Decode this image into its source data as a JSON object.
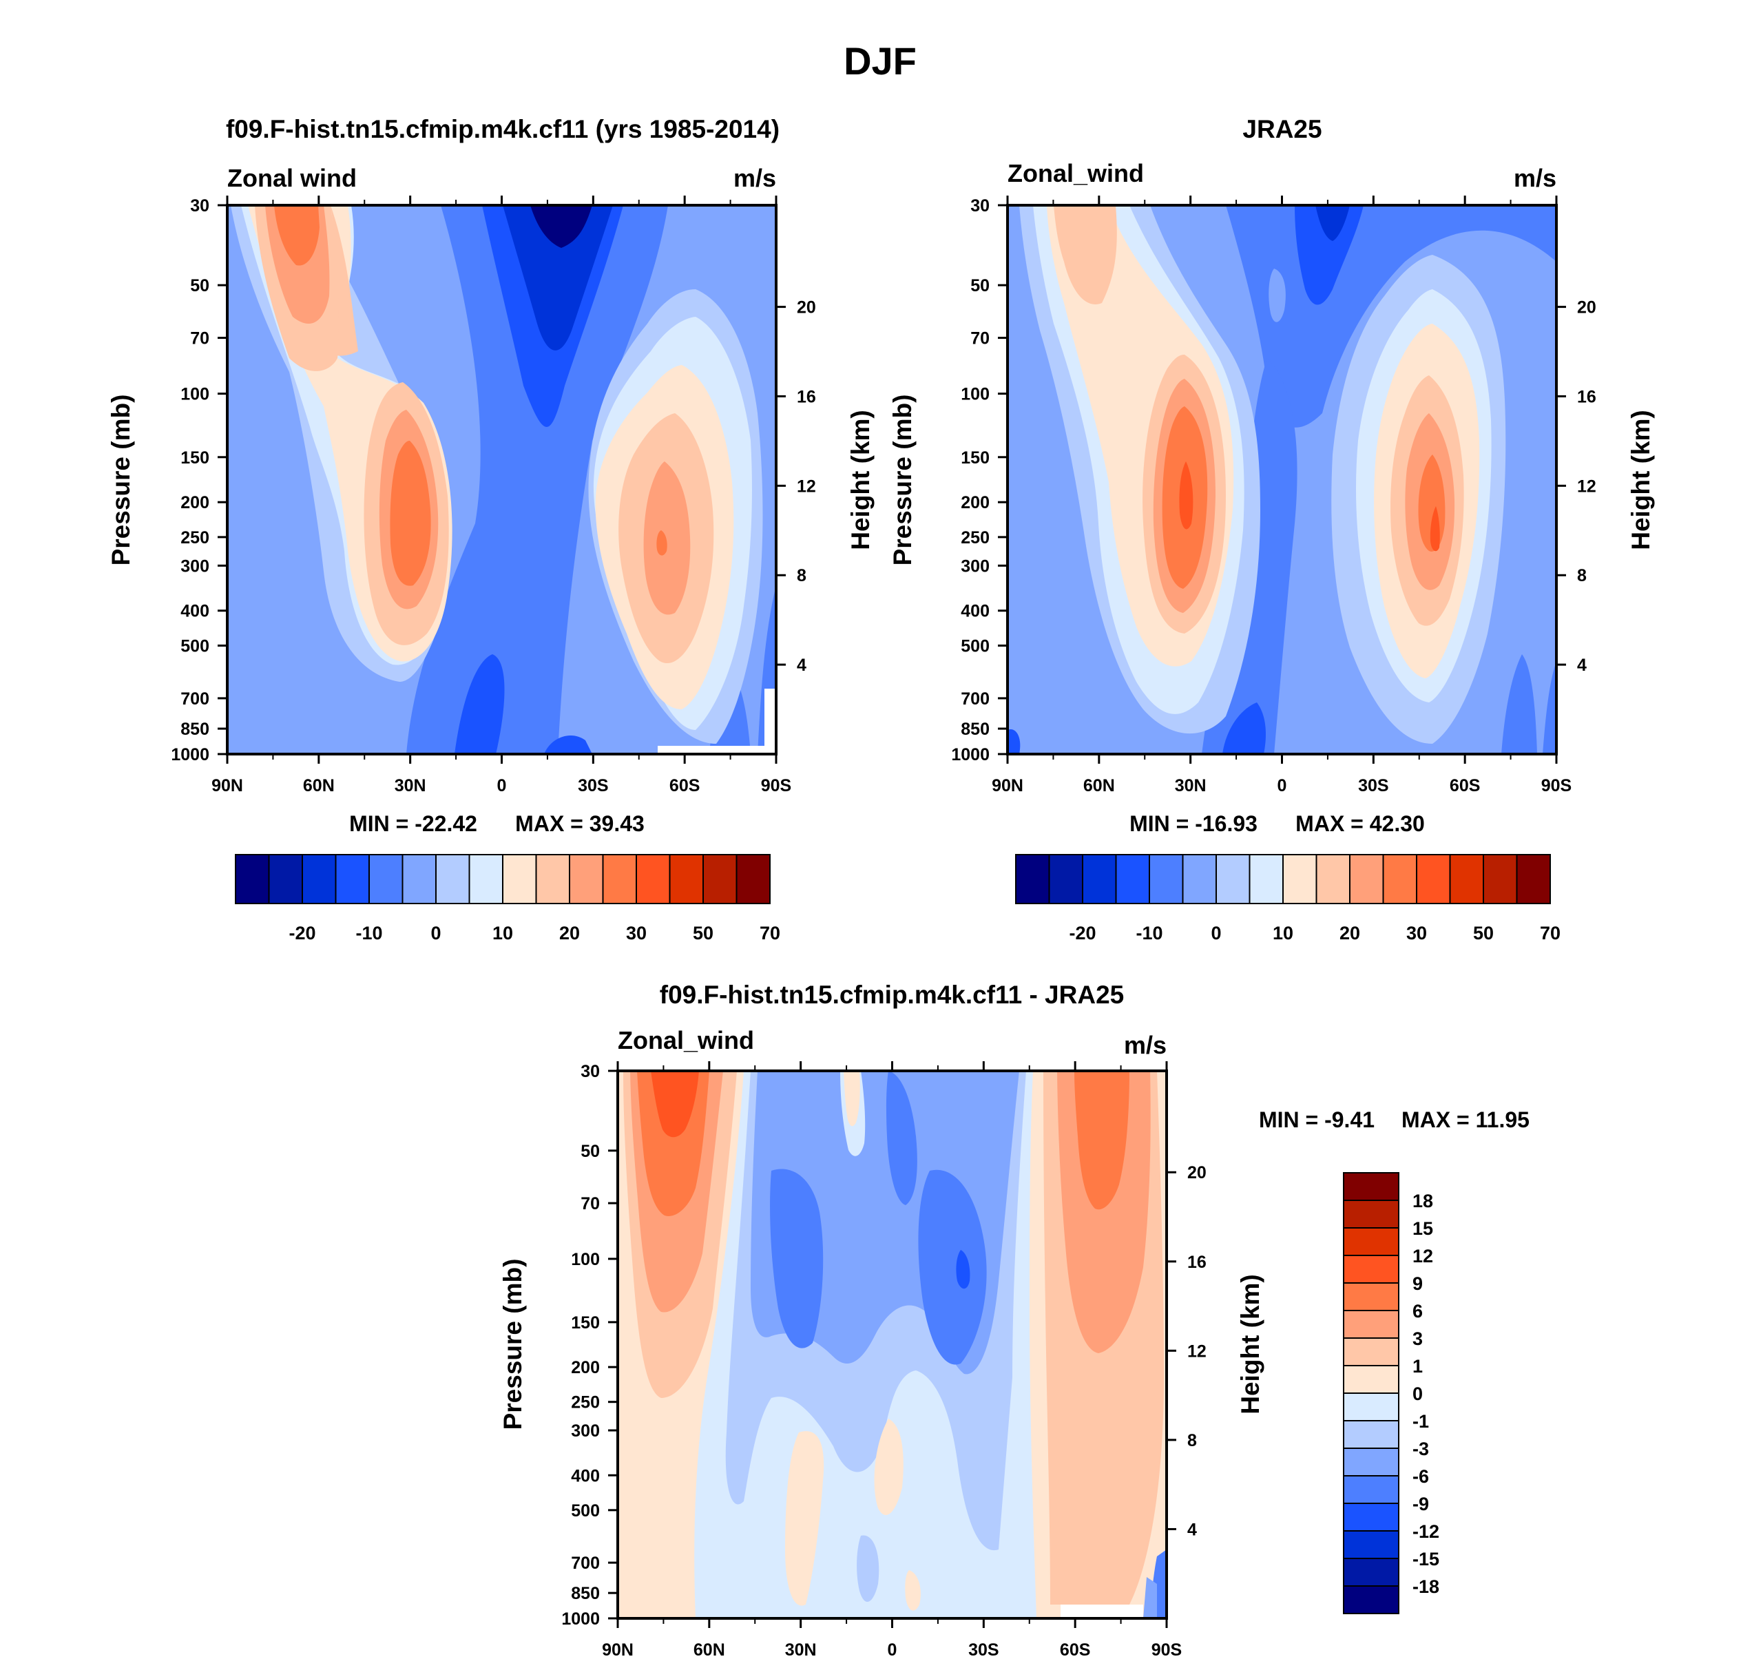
{
  "figure_title": "DJF",
  "colors": {
    "level_palette": [
      "#00007f",
      "#0019a6",
      "#0033d9",
      "#1a53ff",
      "#4d7fff",
      "#80a6ff",
      "#b3ccff",
      "#d9ebff",
      "#ffe6d1",
      "#ffc7a8",
      "#ffa07a",
      "#ff7a45",
      "#ff5421",
      "#e03300",
      "#b81f00",
      "#800000"
    ]
  },
  "chart_data": [
    {
      "type": "contour",
      "panel_title": "f09.F-hist.tn15.cfmip.m4k.cf11 (yrs 1985-2014)",
      "variable_label": "Zonal wind",
      "units_label": "m/s",
      "ylabel": "Pressure (mb)",
      "y2label": "Height (km)",
      "x_ticks": [
        "90N",
        "60N",
        "30N",
        "0",
        "30S",
        "60S",
        "90S"
      ],
      "x_range": [
        90,
        -90
      ],
      "y_ticks": [
        "30",
        "50",
        "70",
        "100",
        "150",
        "200",
        "250",
        "300",
        "400",
        "500",
        "700",
        "850",
        "1000"
      ],
      "y_range_mb": [
        30,
        1000
      ],
      "y2_ticks": [
        "20",
        "16",
        "12",
        "8",
        "4"
      ],
      "min_label": "MIN = -22.42",
      "max_label": "MAX =  39.43",
      "min": -22.42,
      "max": 39.43,
      "colorbar_labels": [
        "-20",
        "-10",
        "0",
        "10",
        "20",
        "30",
        "50",
        "70"
      ],
      "jets": [
        {
          "lat": 30,
          "p_mb": 220,
          "value": 37
        },
        {
          "lat": -50,
          "p_mb": 250,
          "value": 39.43
        },
        {
          "lat": 66,
          "p_mb": 35,
          "value": 28
        },
        {
          "lat": -20,
          "p_mb": 40,
          "value": -22.42
        }
      ]
    },
    {
      "type": "contour",
      "panel_title": "JRA25",
      "variable_label": "Zonal_wind",
      "units_label": "m/s",
      "ylabel": "Pressure (mb)",
      "y2label": "Height (km)",
      "x_ticks": [
        "90N",
        "60N",
        "30N",
        "0",
        "30S",
        "60S",
        "90S"
      ],
      "x_range": [
        90,
        -90
      ],
      "y_ticks": [
        "30",
        "50",
        "70",
        "100",
        "150",
        "200",
        "250",
        "300",
        "400",
        "500",
        "700",
        "850",
        "1000"
      ],
      "y_range_mb": [
        30,
        1000
      ],
      "y2_ticks": [
        "20",
        "16",
        "12",
        "8",
        "4"
      ],
      "min_label": "MIN = -16.93",
      "max_label": "MAX =  42.30",
      "min": -16.93,
      "max": 42.3,
      "colorbar_labels": [
        "-20",
        "-10",
        "0",
        "10",
        "20",
        "30",
        "50",
        "70"
      ],
      "jets": [
        {
          "lat": 30,
          "p_mb": 200,
          "value": 42.3
        },
        {
          "lat": -48,
          "p_mb": 250,
          "value": 38
        },
        {
          "lat": 60,
          "p_mb": 40,
          "value": 15
        },
        {
          "lat": -15,
          "p_mb": 35,
          "value": -16.93
        }
      ]
    },
    {
      "type": "contour",
      "panel_title": "f09.F-hist.tn15.cfmip.m4k.cf11 - JRA25",
      "variable_label": "Zonal_wind",
      "units_label": "m/s",
      "ylabel": "Pressure (mb)",
      "y2label": "Height (km)",
      "x_ticks": [
        "90N",
        "60N",
        "30N",
        "0",
        "30S",
        "60S",
        "90S"
      ],
      "x_range": [
        90,
        -90
      ],
      "y_ticks": [
        "30",
        "50",
        "70",
        "100",
        "150",
        "200",
        "250",
        "300",
        "400",
        "500",
        "700",
        "850",
        "1000"
      ],
      "y_range_mb": [
        30,
        1000
      ],
      "y2_ticks": [
        "20",
        "16",
        "12",
        "8",
        "4"
      ],
      "min_label": "MIN =  -9.41",
      "max_label": "MAX =  11.95",
      "min": -9.41,
      "max": 11.95,
      "colorbar_labels": [
        "18",
        "15",
        "12",
        "9",
        "6",
        "3",
        "1",
        "0",
        "-1",
        "-3",
        "-6",
        "-9",
        "-12",
        "-15",
        "-18"
      ],
      "features": [
        {
          "lat": 68,
          "p_mb": 40,
          "value": 11.95
        },
        {
          "lat": -60,
          "p_mb": 60,
          "value": 9
        },
        {
          "lat": -22,
          "p_mb": 100,
          "value": -9.41
        },
        {
          "lat": 35,
          "p_mb": 100,
          "value": -8
        }
      ]
    }
  ]
}
